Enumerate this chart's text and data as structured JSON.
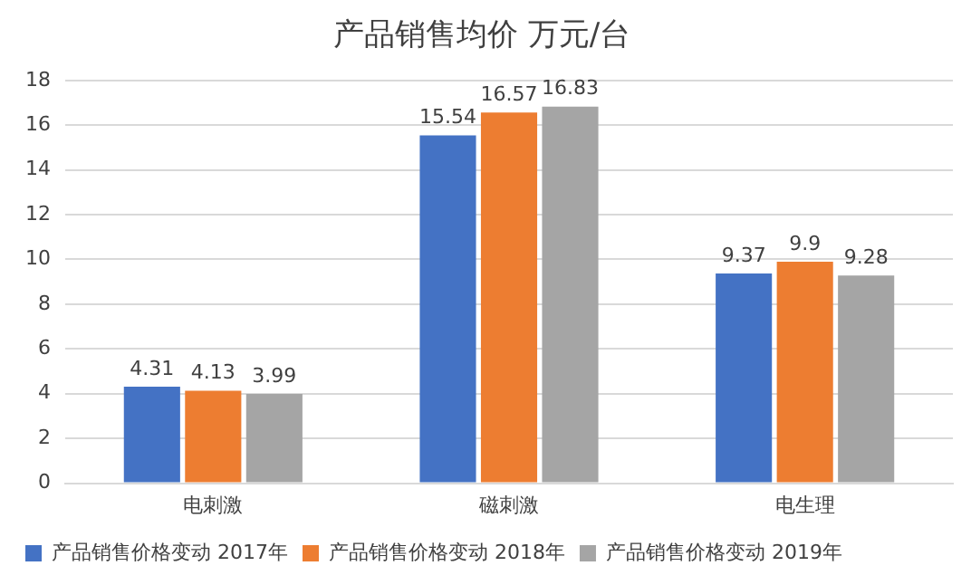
{
  "chart_data": {
    "type": "bar",
    "title": "产品销售均价 万元/台",
    "categories": [
      "电刺激",
      "磁刺激",
      "电生理"
    ],
    "series": [
      {
        "name": "产品销售价格变动 2017年",
        "color": "#4472c4",
        "values": [
          4.31,
          15.54,
          9.37
        ]
      },
      {
        "name": "产品销售价格变动 2018年",
        "color": "#ed7d31",
        "values": [
          4.13,
          16.57,
          9.9
        ]
      },
      {
        "name": "产品销售价格变动 2019年",
        "color": "#a5a5a5",
        "values": [
          3.99,
          16.83,
          9.28
        ]
      }
    ],
    "ylim": [
      0,
      18
    ],
    "yticks": [
      0,
      2,
      4,
      6,
      8,
      10,
      12,
      14,
      16,
      18
    ],
    "grid": "y",
    "legend": "bottom",
    "data_labels": true
  }
}
